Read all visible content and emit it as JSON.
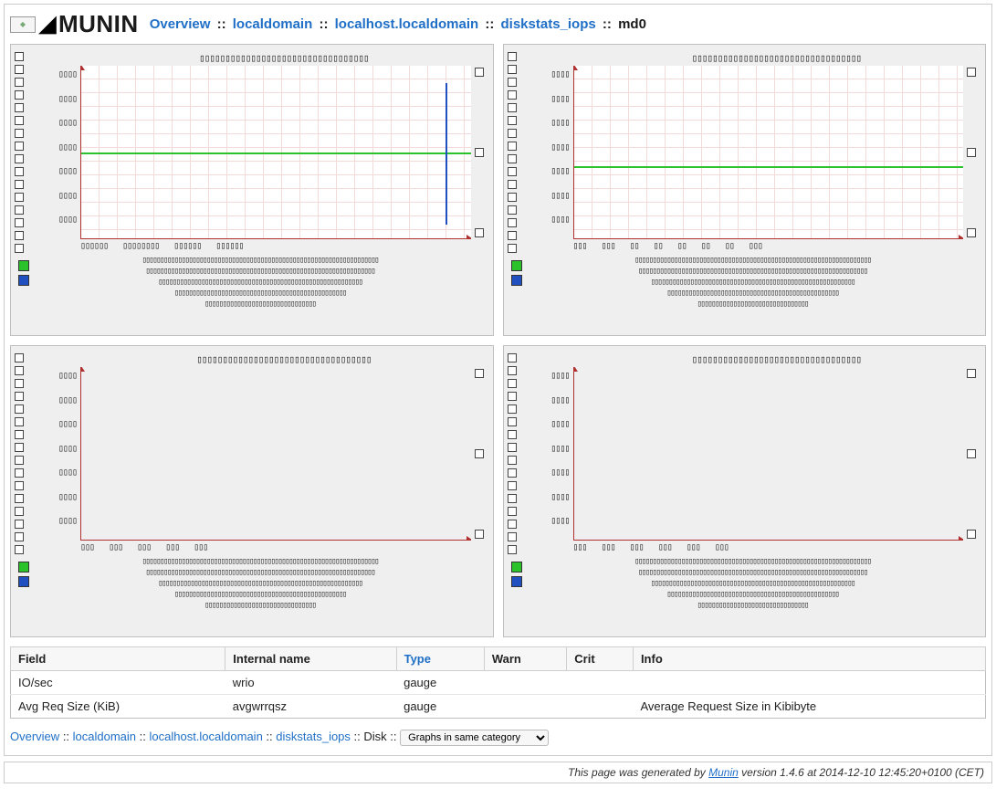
{
  "logo": {
    "text": "MUNIN",
    "icon_label": "munin"
  },
  "breadcrumb_top": {
    "items": [
      {
        "label": "Overview",
        "link": true
      },
      {
        "label": "localdomain",
        "link": true
      },
      {
        "label": "localhost.localdomain",
        "link": true
      },
      {
        "label": "diskstats_iops",
        "link": true
      },
      {
        "label": "md0",
        "link": false
      }
    ],
    "sep": " :: "
  },
  "charts": {
    "panels": [
      {
        "id": "day",
        "title_placeholder": "▯▯▯▯▯▯▯▯▯▯▯▯▯▯▯▯▯▯▯▯▯▯▯▯▯▯▯▯▯▯▯▯▯",
        "ylabels": [
          "▯▯▯▯",
          "▯▯▯▯",
          "▯▯▯▯",
          "▯▯▯▯",
          "▯▯▯▯",
          "▯▯▯▯",
          "▯▯▯▯"
        ],
        "xlabels": [
          "▯▯▯▯▯▯",
          "▯▯▯▯▯▯▯▯",
          "▯▯▯▯▯▯",
          "▯▯▯▯▯▯"
        ],
        "has_data": true,
        "green_line_pct": 50,
        "blue_tail": {
          "right_pct": 6,
          "top_pct": 10,
          "height_pct": 82
        },
        "legend": "▯▯▯▯▯▯▯▯▯▯▯▯▯▯▯▯▯▯▯▯▯▯▯▯▯▯▯▯▯▯▯▯▯▯▯▯▯▯▯▯▯▯▯▯▯▯▯▯▯▯▯▯▯▯▯▯▯▯▯▯▯▯▯▯▯▯\n▯▯▯▯▯▯▯▯▯▯▯▯▯▯▯▯▯▯▯▯▯▯▯▯▯▯▯▯▯▯▯▯▯▯▯▯▯▯▯▯▯▯▯▯▯▯▯▯▯▯▯▯▯▯▯▯▯▯▯▯▯▯▯▯\n▯▯▯▯▯▯▯▯▯▯▯▯▯▯▯▯▯▯▯▯▯▯▯▯▯▯▯▯▯▯▯▯▯▯▯▯▯▯▯▯▯▯▯▯▯▯▯▯▯▯▯▯▯▯▯▯▯\n▯▯▯▯▯▯▯▯▯▯▯▯▯▯▯▯▯▯▯▯▯▯▯▯▯▯▯▯▯▯▯▯▯▯▯▯▯▯▯▯▯▯▯▯▯▯▯▯\n▯▯▯▯▯▯▯▯▯▯▯▯▯▯▯▯▯▯▯▯▯▯▯▯▯▯▯▯▯▯▯"
      },
      {
        "id": "week",
        "title_placeholder": "▯▯▯▯▯▯▯▯▯▯▯▯▯▯▯▯▯▯▯▯▯▯▯▯▯▯▯▯▯▯▯▯▯",
        "ylabels": [
          "▯▯▯▯",
          "▯▯▯▯",
          "▯▯▯▯",
          "▯▯▯▯",
          "▯▯▯▯",
          "▯▯▯▯",
          "▯▯▯▯"
        ],
        "xlabels": [
          "▯▯▯",
          "▯▯▯",
          "▯▯",
          "▯▯",
          "▯▯",
          "▯▯",
          "▯▯",
          "▯▯▯"
        ],
        "has_data": true,
        "green_line_pct": 58,
        "blue_tail": null,
        "legend": "▯▯▯▯▯▯▯▯▯▯▯▯▯▯▯▯▯▯▯▯▯▯▯▯▯▯▯▯▯▯▯▯▯▯▯▯▯▯▯▯▯▯▯▯▯▯▯▯▯▯▯▯▯▯▯▯▯▯▯▯▯▯▯▯▯▯\n▯▯▯▯▯▯▯▯▯▯▯▯▯▯▯▯▯▯▯▯▯▯▯▯▯▯▯▯▯▯▯▯▯▯▯▯▯▯▯▯▯▯▯▯▯▯▯▯▯▯▯▯▯▯▯▯▯▯▯▯▯▯▯▯\n▯▯▯▯▯▯▯▯▯▯▯▯▯▯▯▯▯▯▯▯▯▯▯▯▯▯▯▯▯▯▯▯▯▯▯▯▯▯▯▯▯▯▯▯▯▯▯▯▯▯▯▯▯▯▯▯▯\n▯▯▯▯▯▯▯▯▯▯▯▯▯▯▯▯▯▯▯▯▯▯▯▯▯▯▯▯▯▯▯▯▯▯▯▯▯▯▯▯▯▯▯▯▯▯▯▯\n▯▯▯▯▯▯▯▯▯▯▯▯▯▯▯▯▯▯▯▯▯▯▯▯▯▯▯▯▯▯▯"
      },
      {
        "id": "month",
        "title_placeholder": "▯▯▯▯▯▯▯▯▯▯▯▯▯▯▯▯▯▯▯▯▯▯▯▯▯▯▯▯▯▯▯▯▯▯",
        "ylabels": [
          "▯▯▯▯",
          "▯▯▯▯",
          "▯▯▯▯",
          "▯▯▯▯",
          "▯▯▯▯",
          "▯▯▯▯",
          "▯▯▯▯"
        ],
        "xlabels": [
          "▯▯▯",
          "▯▯▯",
          "▯▯▯",
          "▯▯▯",
          "▯▯▯"
        ],
        "has_data": false,
        "green_line_pct": null,
        "blue_tail": null,
        "legend": "▯▯▯▯▯▯▯▯▯▯▯▯▯▯▯▯▯▯▯▯▯▯▯▯▯▯▯▯▯▯▯▯▯▯▯▯▯▯▯▯▯▯▯▯▯▯▯▯▯▯▯▯▯▯▯▯▯▯▯▯▯▯▯▯▯▯\n▯▯▯▯▯▯▯▯▯▯▯▯▯▯▯▯▯▯▯▯▯▯▯▯▯▯▯▯▯▯▯▯▯▯▯▯▯▯▯▯▯▯▯▯▯▯▯▯▯▯▯▯▯▯▯▯▯▯▯▯▯▯▯▯\n▯▯▯▯▯▯▯▯▯▯▯▯▯▯▯▯▯▯▯▯▯▯▯▯▯▯▯▯▯▯▯▯▯▯▯▯▯▯▯▯▯▯▯▯▯▯▯▯▯▯▯▯▯▯▯▯▯\n▯▯▯▯▯▯▯▯▯▯▯▯▯▯▯▯▯▯▯▯▯▯▯▯▯▯▯▯▯▯▯▯▯▯▯▯▯▯▯▯▯▯▯▯▯▯▯▯\n▯▯▯▯▯▯▯▯▯▯▯▯▯▯▯▯▯▯▯▯▯▯▯▯▯▯▯▯▯▯▯"
      },
      {
        "id": "year",
        "title_placeholder": "▯▯▯▯▯▯▯▯▯▯▯▯▯▯▯▯▯▯▯▯▯▯▯▯▯▯▯▯▯▯▯▯▯",
        "ylabels": [
          "▯▯▯▯",
          "▯▯▯▯",
          "▯▯▯▯",
          "▯▯▯▯",
          "▯▯▯▯",
          "▯▯▯▯",
          "▯▯▯▯"
        ],
        "xlabels": [
          "▯▯▯",
          "▯▯▯",
          "▯▯▯",
          "▯▯▯",
          "▯▯▯",
          "▯▯▯"
        ],
        "has_data": false,
        "green_line_pct": null,
        "blue_tail": null,
        "legend": "▯▯▯▯▯▯▯▯▯▯▯▯▯▯▯▯▯▯▯▯▯▯▯▯▯▯▯▯▯▯▯▯▯▯▯▯▯▯▯▯▯▯▯▯▯▯▯▯▯▯▯▯▯▯▯▯▯▯▯▯▯▯▯▯▯▯\n▯▯▯▯▯▯▯▯▯▯▯▯▯▯▯▯▯▯▯▯▯▯▯▯▯▯▯▯▯▯▯▯▯▯▯▯▯▯▯▯▯▯▯▯▯▯▯▯▯▯▯▯▯▯▯▯▯▯▯▯▯▯▯▯\n▯▯▯▯▯▯▯▯▯▯▯▯▯▯▯▯▯▯▯▯▯▯▯▯▯▯▯▯▯▯▯▯▯▯▯▯▯▯▯▯▯▯▯▯▯▯▯▯▯▯▯▯▯▯▯▯▯\n▯▯▯▯▯▯▯▯▯▯▯▯▯▯▯▯▯▯▯▯▯▯▯▯▯▯▯▯▯▯▯▯▯▯▯▯▯▯▯▯▯▯▯▯▯▯▯▯\n▯▯▯▯▯▯▯▯▯▯▯▯▯▯▯▯▯▯▯▯▯▯▯▯▯▯▯▯▯▯▯"
      }
    ],
    "colors": {
      "axis": "#b03030",
      "grid": "#f3dada",
      "series_green": "#2bc22b",
      "series_blue": "#2050c0",
      "panel_bg": "#efefef",
      "plot_bg": "#ffffff"
    }
  },
  "table": {
    "columns": [
      "Field",
      "Internal name",
      "Type",
      "Warn",
      "Crit",
      "Info"
    ],
    "type_link": true,
    "rows": [
      {
        "field": "IO/sec",
        "internal": "wrio",
        "type": "gauge",
        "warn": "",
        "crit": "",
        "info": ""
      },
      {
        "field": "Avg Req Size (KiB)",
        "internal": "avgwrrqsz",
        "type": "gauge",
        "warn": "",
        "crit": "",
        "info": "Average Request Size in Kibibyte"
      }
    ]
  },
  "breadcrumb_bottom": {
    "items": [
      {
        "label": "Overview",
        "link": true
      },
      {
        "label": "localdomain",
        "link": true
      },
      {
        "label": "localhost.localdomain",
        "link": true
      },
      {
        "label": "diskstats_iops",
        "link": true
      },
      {
        "label": "Disk",
        "link": false
      }
    ],
    "sep": " :: ",
    "select_value": "Graphs in same category"
  },
  "footer": {
    "prefix": "This page was generated by ",
    "app": "Munin",
    "suffix": " version 1.4.6 at 2014-12-10 12:45:20+0100 (CET)"
  }
}
